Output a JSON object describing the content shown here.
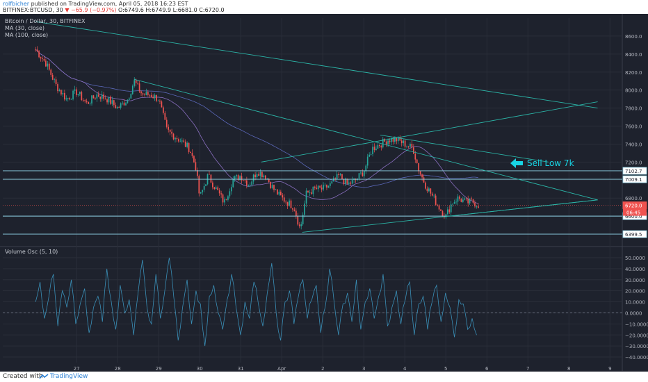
{
  "header": {
    "user": "rolfbicher",
    "published_text": "published on TradingView.com, April 05, 2018 16:23 EST",
    "symbol_line": "BITFINEX:BTCUSD, 30",
    "change": "▼ −65.9 (−0.97%)",
    "ohlc": "O:6749.6 H:6749.9 L:6681.0 C:6720.0"
  },
  "legend": {
    "symbol": "Bitcoin / Dollar, 30, BITFINEX",
    "ma30": "MA (30, close)",
    "ma100": "MA (100, close)"
  },
  "footer": {
    "created_with": "Created with",
    "brand": "TradingView"
  },
  "annotation": {
    "text": "Sell Low 7k",
    "color": "#18d4e4"
  },
  "colors": {
    "background": "#1e222d",
    "up": "#26a69a",
    "down": "#ef5350",
    "trendline": "#2bb3a6",
    "osc": "#3a8fb7",
    "hline": "#8fd3e6"
  },
  "chart_data": [
    {
      "type": "candlestick",
      "title": "Bitcoin / Dollar, 30, BITFINEX",
      "ylim": [
        6300,
        8800
      ],
      "y_ticks": [
        6400,
        6600,
        6800,
        7000,
        7200,
        7400,
        7600,
        7800,
        8000,
        8200,
        8400,
        8600
      ],
      "x_labels": [
        "27",
        "28",
        "29",
        "30",
        "31",
        "Apr",
        "2",
        "3",
        "4",
        "5",
        "6",
        "7",
        "8",
        "9"
      ],
      "series_close": [
        {
          "x": 26.0,
          "y": 8450
        },
        {
          "x": 26.25,
          "y": 8300
        },
        {
          "x": 26.5,
          "y": 8050
        },
        {
          "x": 26.75,
          "y": 7900
        },
        {
          "x": 27.0,
          "y": 7980
        },
        {
          "x": 27.25,
          "y": 7850
        },
        {
          "x": 27.5,
          "y": 7950
        },
        {
          "x": 27.75,
          "y": 7900
        },
        {
          "x": 28.0,
          "y": 7800
        },
        {
          "x": 28.25,
          "y": 7900
        },
        {
          "x": 28.4,
          "y": 8100
        },
        {
          "x": 28.6,
          "y": 7950
        },
        {
          "x": 28.8,
          "y": 7950
        },
        {
          "x": 29.0,
          "y": 7900
        },
        {
          "x": 29.2,
          "y": 7550
        },
        {
          "x": 29.5,
          "y": 7450
        },
        {
          "x": 29.75,
          "y": 7350
        },
        {
          "x": 29.9,
          "y": 7150
        },
        {
          "x": 30.0,
          "y": 6800
        },
        {
          "x": 30.2,
          "y": 7050
        },
        {
          "x": 30.4,
          "y": 6900
        },
        {
          "x": 30.6,
          "y": 6750
        },
        {
          "x": 30.8,
          "y": 7000
        },
        {
          "x": 31.0,
          "y": 7050
        },
        {
          "x": 31.2,
          "y": 6950
        },
        {
          "x": 31.4,
          "y": 7100
        },
        {
          "x": 31.6,
          "y": 7050
        },
        {
          "x": 31.8,
          "y": 6900
        },
        {
          "x": 32.0,
          "y": 6800
        },
        {
          "x": 32.3,
          "y": 6700
        },
        {
          "x": 32.45,
          "y": 6450
        },
        {
          "x": 32.6,
          "y": 6850
        },
        {
          "x": 32.8,
          "y": 6900
        },
        {
          "x": 33.0,
          "y": 6900
        },
        {
          "x": 33.2,
          "y": 6950
        },
        {
          "x": 33.4,
          "y": 7050
        },
        {
          "x": 33.6,
          "y": 6950
        },
        {
          "x": 33.8,
          "y": 7000
        },
        {
          "x": 34.0,
          "y": 7100
        },
        {
          "x": 34.2,
          "y": 7350
        },
        {
          "x": 34.4,
          "y": 7400
        },
        {
          "x": 34.6,
          "y": 7450
        },
        {
          "x": 34.8,
          "y": 7450
        },
        {
          "x": 35.0,
          "y": 7400
        },
        {
          "x": 35.2,
          "y": 7350
        },
        {
          "x": 35.35,
          "y": 7100
        },
        {
          "x": 35.5,
          "y": 6950
        },
        {
          "x": 35.7,
          "y": 6800
        },
        {
          "x": 35.9,
          "y": 6650
        },
        {
          "x": 36.0,
          "y": 6600
        },
        {
          "x": 36.15,
          "y": 6750
        },
        {
          "x": 36.3,
          "y": 6800
        },
        {
          "x": 36.5,
          "y": 6750
        },
        {
          "x": 36.65,
          "y": 6760
        },
        {
          "x": 36.8,
          "y": 6720
        }
      ],
      "ma30_label": "MA (30, close)",
      "ma100_label": "MA (100, close)",
      "price_labels": [
        {
          "value": "7102.7",
          "y": 7102.7
        },
        {
          "value": "7009.1",
          "y": 7009.1
        },
        {
          "value": "6720.0",
          "y": 6720.0
        },
        {
          "value": "6600.0",
          "y": 6600.0
        },
        {
          "value": "6399.5",
          "y": 6399.5
        }
      ],
      "time_to_close": "06:45",
      "trendlines": [
        [
          {
            "x": 26.0,
            "y": 8760
          },
          {
            "x": 39.7,
            "y": 7800
          }
        ],
        [
          {
            "x": 28.4,
            "y": 8120
          },
          {
            "x": 39.7,
            "y": 6780
          }
        ],
        [
          {
            "x": 32.5,
            "y": 6420
          },
          {
            "x": 39.7,
            "y": 6780
          }
        ],
        [
          {
            "x": 31.5,
            "y": 7200
          },
          {
            "x": 39.7,
            "y": 7870
          }
        ],
        [
          {
            "x": 34.4,
            "y": 7500
          },
          {
            "x": 38.5,
            "y": 7200
          }
        ],
        [
          {
            "x": 36.1,
            "y": 6600
          },
          {
            "x": 39.7,
            "y": 6780
          }
        ]
      ],
      "horizontal_lines": [
        7102.7,
        7009.1,
        6600.0,
        6399.5
      ]
    },
    {
      "type": "line",
      "title": "Volume Osc (5, 10)",
      "ylim": [
        -45,
        55
      ],
      "y_ticks": [
        50,
        40,
        30,
        20,
        10,
        0,
        -10,
        -20,
        -30,
        -40
      ],
      "y_tick_labels": [
        "50.0000",
        "40.0000",
        "30.0000",
        "20.0000",
        "10.0000",
        "0.0000",
        "−10.0000",
        "−20.0000",
        "−30.0000",
        "−40.0000"
      ],
      "x_labels": [
        "27",
        "28",
        "29",
        "30",
        "31",
        "Apr",
        "2",
        "3",
        "4",
        "5",
        "6",
        "7",
        "8",
        "9"
      ],
      "series": [
        {
          "values": [
            10,
            28,
            -5,
            15,
            35,
            -12,
            20,
            5,
            30,
            -10,
            8,
            22,
            -18,
            5,
            15,
            -8,
            40,
            10,
            -15,
            25,
            0,
            12,
            -20,
            18,
            48,
            5,
            -10,
            35,
            -5,
            20,
            50,
            15,
            -25,
            5,
            30,
            -10,
            20,
            8,
            -30,
            15,
            25,
            0,
            -15,
            12,
            35,
            5,
            -20,
            10,
            -5,
            28,
            8,
            -12,
            18,
            45,
            0,
            -25,
            10,
            20,
            -10,
            15,
            30,
            -5,
            12,
            25,
            -18,
            5,
            40,
            10,
            -20,
            8,
            18,
            -8,
            30,
            -15,
            10,
            22,
            -5,
            15,
            35,
            -12,
            5,
            20,
            -10,
            12,
            28,
            -20,
            8,
            15,
            -15,
            10,
            25,
            -8,
            18,
            5,
            -22,
            12,
            8,
            -15,
            -5,
            -20
          ]
        }
      ]
    }
  ]
}
